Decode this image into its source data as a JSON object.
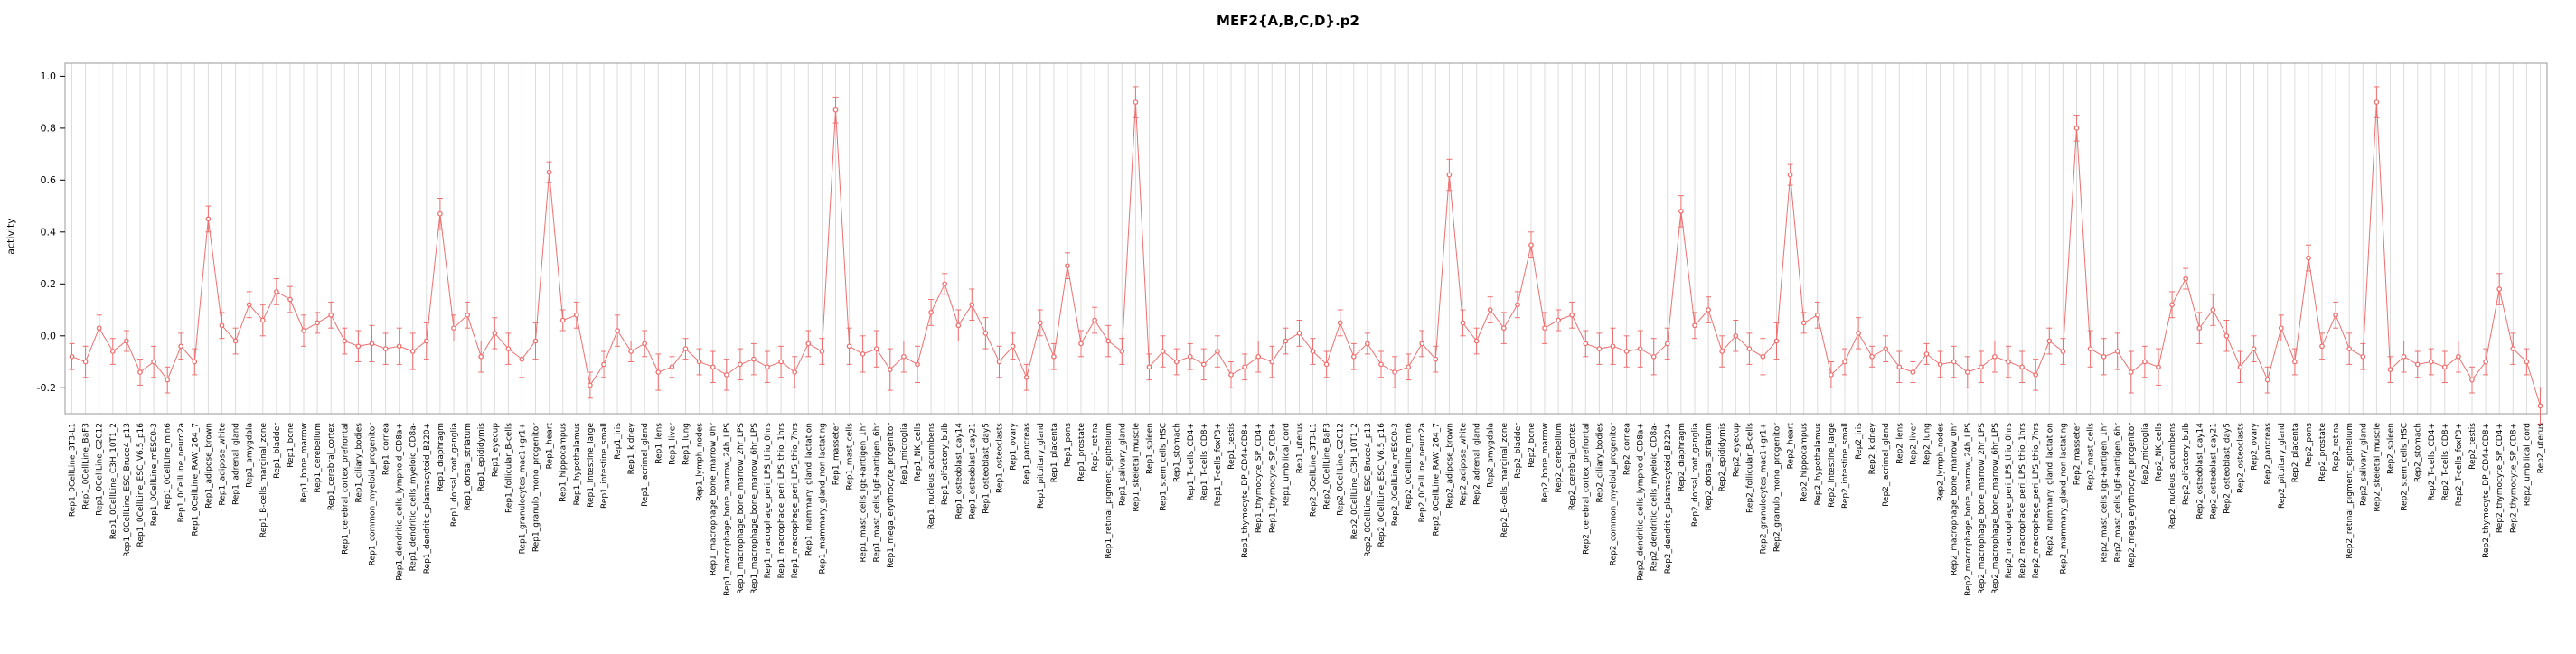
{
  "chart_data": {
    "type": "line",
    "title": "MEF2{A,B,C,D}.p2",
    "ylabel": "activity",
    "xlabel": "",
    "ylim": [
      -0.3,
      1.05
    ],
    "yticks": [
      -0.2,
      0.0,
      0.2,
      0.4,
      0.6,
      0.8,
      1.0
    ],
    "grid": "vertical-per-category",
    "legend": "none",
    "point_color": "#ee7070",
    "grid_color": "#dddddd",
    "box_color": "#999999",
    "samples": [
      "0CellLine_3T3-L1",
      "0CellLine_BaF3",
      "0CellLine_C2C12",
      "0CellLine_C3H_10T1_2",
      "0CellLine_ESC_Bruce4_p13",
      "0CellLine_ESC_V6.5_p16",
      "0CellLine_mESC0-3",
      "0CellLine_min6",
      "0CellLine_neuro2a",
      "0CellLine_RAW_264_7",
      "adipose_brown",
      "adipose_white",
      "adrenal_gland",
      "amygdala",
      "B-cells_marginal_zone",
      "bladder",
      "bone",
      "bone_marrow",
      "cerebellum",
      "cerebral_cortex",
      "cerebral_cortex_prefrontal",
      "ciliary_bodies",
      "common_myeloid_progenitor",
      "cornea",
      "dendritic_cells_lymphoid_CD8a+",
      "dendritic_cells_myeloid_CD8a-",
      "dendritic_plasmacytoid_B220+",
      "diaphragm",
      "dorsal_root_ganglia",
      "dorsal_striatum",
      "epididymis",
      "eyecup",
      "follicular_B-cells",
      "granulocytes_mac1+gr1+",
      "granulo_mono_progenitor",
      "heart",
      "hippocampus",
      "hypothalamus",
      "intestine_large",
      "intestine_small",
      "iris",
      "kidney",
      "lacrimal_gland",
      "lens",
      "liver",
      "lung",
      "lymph_nodes",
      "macrophage_bone_marrow_0hr",
      "macrophage_bone_marrow_24h_LPS",
      "macrophage_bone_marrow_2hr_LPS",
      "macrophage_bone_marrow_6hr_LPS",
      "macrophage_peri_LPS_thio_0hrs",
      "macrophage_peri_LPS_thio_1hrs",
      "macrophage_peri_LPS_thio_7hrs",
      "mammary_gland_lactation",
      "mammary_gland_non-lactating",
      "masseter",
      "mast_cells",
      "mast_cells_IgE+antigen_1hr",
      "mast_cells_IgE+antigen_6hr",
      "mega_erythrocyte_progenitor",
      "microglia",
      "NK_cells",
      "nucleus_accumbens",
      "olfactory_bulb",
      "osteoblast_day14",
      "osteoblast_day21",
      "osteoblast_day5",
      "osteoclasts",
      "ovary",
      "pancreas",
      "pituitary_gland",
      "placenta",
      "pons",
      "prostate",
      "retina",
      "retinal_pigment_epithelium",
      "salivary_gland",
      "skeletal_muscle",
      "spleen",
      "stem_cells_HSC",
      "stomach",
      "T-cells_CD4+",
      "T-cells_CD8+",
      "T-cells_foxP3+",
      "testis",
      "thymocyte_DP_CD4+CD8+",
      "thymocyte_SP_CD4+",
      "thymocyte_SP_CD8+",
      "umbilical_cord",
      "uterus"
    ],
    "series": [
      {
        "name": "Rep1",
        "values": [
          -0.08,
          -0.1,
          0.03,
          -0.06,
          -0.02,
          -0.14,
          -0.1,
          -0.17,
          -0.04,
          -0.1,
          0.45,
          0.04,
          -0.02,
          0.12,
          0.06,
          0.17,
          0.14,
          0.02,
          0.05,
          0.08,
          -0.02,
          -0.04,
          -0.03,
          -0.05,
          -0.04,
          -0.06,
          -0.02,
          0.47,
          0.03,
          0.08,
          -0.08,
          0.01,
          -0.05,
          -0.09,
          -0.02,
          0.63,
          0.06,
          0.08,
          -0.19,
          -0.11,
          0.02,
          -0.06,
          -0.03,
          -0.14,
          -0.12,
          -0.05,
          -0.1,
          -0.12,
          -0.15,
          -0.11,
          -0.09,
          -0.12,
          -0.1,
          -0.14,
          -0.03,
          -0.06,
          0.87,
          -0.04,
          -0.07,
          -0.05,
          -0.13,
          -0.08,
          -0.11,
          0.09,
          0.2,
          0.04,
          0.12,
          0.01,
          -0.1,
          -0.04,
          -0.16,
          0.05,
          -0.08,
          0.27,
          -0.03,
          0.06,
          -0.02,
          -0.06,
          0.9,
          -0.12,
          -0.06,
          -0.1,
          -0.08,
          -0.11,
          -0.06,
          -0.15,
          -0.12,
          -0.08,
          -0.1,
          -0.02,
          0.01
        ],
        "errors": [
          0.05,
          0.06,
          0.05,
          0.05,
          0.04,
          0.05,
          0.06,
          0.05,
          0.05,
          0.05,
          0.05,
          0.05,
          0.05,
          0.05,
          0.06,
          0.05,
          0.05,
          0.06,
          0.04,
          0.05,
          0.05,
          0.06,
          0.07,
          0.06,
          0.07,
          0.07,
          0.07,
          0.06,
          0.05,
          0.05,
          0.06,
          0.06,
          0.06,
          0.07,
          0.07,
          0.04,
          0.04,
          0.05,
          0.05,
          0.05,
          0.06,
          0.04,
          0.05,
          0.07,
          0.04,
          0.04,
          0.05,
          0.06,
          0.06,
          0.06,
          0.06,
          0.06,
          0.06,
          0.06,
          0.05,
          0.05,
          0.05,
          0.07,
          0.07,
          0.07,
          0.08,
          0.06,
          0.07,
          0.05,
          0.04,
          0.06,
          0.06,
          0.06,
          0.06,
          0.05,
          0.05,
          0.05,
          0.05,
          0.05,
          0.05,
          0.05,
          0.06,
          0.05,
          0.06,
          0.05,
          0.06,
          0.05,
          0.05,
          0.06,
          0.06,
          0.05,
          0.05,
          0.06,
          0.06,
          0.05,
          0.05
        ]
      },
      {
        "name": "Rep2",
        "values": [
          -0.06,
          -0.11,
          0.05,
          -0.08,
          -0.03,
          -0.11,
          -0.14,
          -0.12,
          -0.03,
          -0.09,
          0.62,
          0.05,
          -0.02,
          0.1,
          0.03,
          0.12,
          0.35,
          0.03,
          0.06,
          0.08,
          -0.03,
          -0.05,
          -0.04,
          -0.06,
          -0.05,
          -0.08,
          -0.03,
          0.48,
          0.04,
          0.1,
          -0.06,
          0.0,
          -0.05,
          -0.08,
          -0.02,
          0.62,
          0.05,
          0.08,
          -0.15,
          -0.1,
          0.01,
          -0.08,
          -0.05,
          -0.12,
          -0.14,
          -0.07,
          -0.11,
          -0.1,
          -0.14,
          -0.12,
          -0.08,
          -0.1,
          -0.12,
          -0.15,
          -0.02,
          -0.06,
          0.8,
          -0.05,
          -0.08,
          -0.06,
          -0.14,
          -0.1,
          -0.12,
          0.12,
          0.22,
          0.03,
          0.1,
          0.0,
          -0.12,
          -0.05,
          -0.17,
          0.03,
          -0.1,
          0.3,
          -0.04,
          0.08,
          -0.05,
          -0.08,
          0.9,
          -0.13,
          -0.08,
          -0.11,
          -0.1,
          -0.12,
          -0.08,
          -0.17,
          -0.1,
          0.18,
          -0.05,
          -0.1,
          -0.27
        ],
        "errors": [
          0.05,
          0.05,
          0.05,
          0.05,
          0.04,
          0.05,
          0.06,
          0.05,
          0.05,
          0.05,
          0.06,
          0.05,
          0.05,
          0.05,
          0.06,
          0.05,
          0.05,
          0.06,
          0.04,
          0.05,
          0.05,
          0.06,
          0.07,
          0.06,
          0.07,
          0.07,
          0.06,
          0.06,
          0.05,
          0.05,
          0.06,
          0.06,
          0.06,
          0.07,
          0.07,
          0.04,
          0.04,
          0.05,
          0.05,
          0.05,
          0.06,
          0.04,
          0.05,
          0.06,
          0.04,
          0.04,
          0.05,
          0.06,
          0.06,
          0.06,
          0.06,
          0.06,
          0.06,
          0.06,
          0.05,
          0.05,
          0.05,
          0.07,
          0.07,
          0.07,
          0.08,
          0.06,
          0.07,
          0.05,
          0.04,
          0.06,
          0.06,
          0.06,
          0.06,
          0.05,
          0.05,
          0.05,
          0.05,
          0.05,
          0.05,
          0.05,
          0.06,
          0.05,
          0.06,
          0.05,
          0.06,
          0.05,
          0.05,
          0.06,
          0.06,
          0.05,
          0.05,
          0.06,
          0.06,
          0.05,
          0.07
        ]
      }
    ]
  }
}
